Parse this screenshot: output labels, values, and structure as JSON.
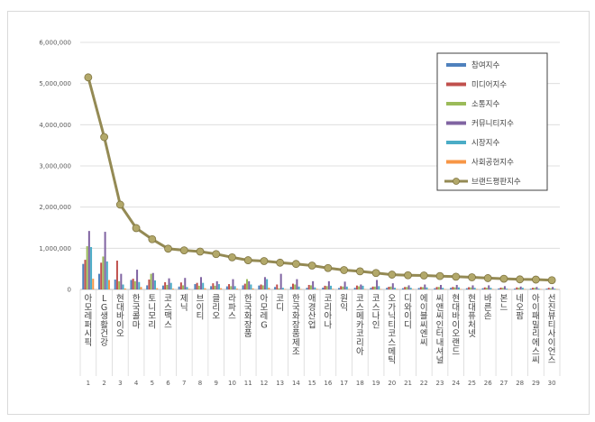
{
  "chart_data": {
    "type": "bar",
    "ylim": [
      0,
      6000000
    ],
    "yticks": [
      "0",
      "1,000,000",
      "2,000,000",
      "3,000,000",
      "4,000,000",
      "5,000,000",
      "6,000,000"
    ],
    "categories": [
      "아모레퍼시픽",
      "LG생활건강",
      "현대바이오",
      "한국콜마",
      "토니모리",
      "코스맥스",
      "제닉",
      "브이티",
      "클리오",
      "라파스",
      "한국화장품",
      "아모레G",
      "코디",
      "한국화장품제조",
      "애경산업",
      "코리아나",
      "원익",
      "코스메카코리아",
      "코스나인",
      "오가닉티코스메틱",
      "디와이디",
      "에이블씨엔씨",
      "씨앤씨인터내셔널",
      "현대바이오랜드",
      "현대퓨처넷",
      "바른손",
      "본느",
      "네오팜",
      "아이패밀리에스씨",
      "선진뷰티사이언스"
    ],
    "ranks": [
      "1",
      "2",
      "3",
      "4",
      "5",
      "6",
      "7",
      "8",
      "9",
      "10",
      "11",
      "12",
      "13",
      "14",
      "15",
      "16",
      "17",
      "18",
      "19",
      "20",
      "21",
      "22",
      "23",
      "24",
      "25",
      "26",
      "27",
      "28",
      "29",
      "30"
    ],
    "legend_position": "top-right",
    "series": [
      {
        "name": "참여지수",
        "color": "#4f81bd",
        "values": [
          620000,
          380000,
          240000,
          230000,
          100000,
          95000,
          70000,
          130000,
          80000,
          75000,
          100000,
          95000,
          60000,
          65000,
          40000,
          45000,
          35000,
          40000,
          40000,
          40000,
          30000,
          35000,
          30000,
          40000,
          30000,
          30000,
          25000,
          20000,
          20000,
          20000
        ]
      },
      {
        "name": "미디어지수",
        "color": "#c0504d",
        "values": [
          720000,
          650000,
          700000,
          260000,
          240000,
          175000,
          170000,
          160000,
          150000,
          130000,
          140000,
          120000,
          120000,
          140000,
          110000,
          90000,
          80000,
          95000,
          70000,
          65000,
          60000,
          60000,
          60000,
          60000,
          55000,
          50000,
          45000,
          50000,
          40000,
          40000
        ]
      },
      {
        "name": "소통지수",
        "color": "#9bbb59",
        "values": [
          1050000,
          800000,
          200000,
          200000,
          380000,
          110000,
          100000,
          90000,
          90000,
          80000,
          250000,
          100000,
          25000,
          120000,
          100000,
          80000,
          70000,
          75000,
          70000,
          70000,
          60000,
          55000,
          60000,
          50000,
          50000,
          40000,
          40000,
          40000,
          40000,
          30000
        ]
      },
      {
        "name": "커뮤니티지수",
        "color": "#8064a2",
        "values": [
          1420000,
          1400000,
          380000,
          480000,
          400000,
          270000,
          280000,
          300000,
          200000,
          250000,
          200000,
          300000,
          380000,
          250000,
          200000,
          200000,
          190000,
          120000,
          230000,
          150000,
          100000,
          120000,
          110000,
          110000,
          100000,
          100000,
          80000,
          70000,
          60000,
          60000
        ]
      },
      {
        "name": "시장지수",
        "color": "#4bacc6",
        "values": [
          1030000,
          680000,
          120000,
          180000,
          220000,
          160000,
          60000,
          160000,
          130000,
          80000,
          120000,
          250000,
          40000,
          70000,
          50000,
          90000,
          70000,
          90000,
          80000,
          40000,
          40000,
          50000,
          40000,
          50000,
          40000,
          40000,
          20000,
          40000,
          20000,
          20000
        ]
      },
      {
        "name": "사회공헌지수",
        "color": "#f79646",
        "values": [
          260000,
          230000,
          25000,
          60000,
          30000,
          20000,
          15000,
          30000,
          30000,
          20000,
          25000,
          40000,
          10000,
          10000,
          15000,
          15000,
          10000,
          10000,
          10000,
          10000,
          10000,
          10000,
          10000,
          10000,
          10000,
          10000,
          10000,
          10000,
          10000,
          10000
        ]
      }
    ],
    "line": {
      "name": "브랜드평판지수",
      "color": "#948a54",
      "values": [
        5150000,
        3700000,
        2060000,
        1490000,
        1220000,
        990000,
        950000,
        920000,
        860000,
        780000,
        710000,
        690000,
        650000,
        620000,
        580000,
        520000,
        470000,
        440000,
        400000,
        360000,
        345000,
        340000,
        325000,
        310000,
        295000,
        275000,
        260000,
        245000,
        240000,
        225000
      ]
    }
  }
}
